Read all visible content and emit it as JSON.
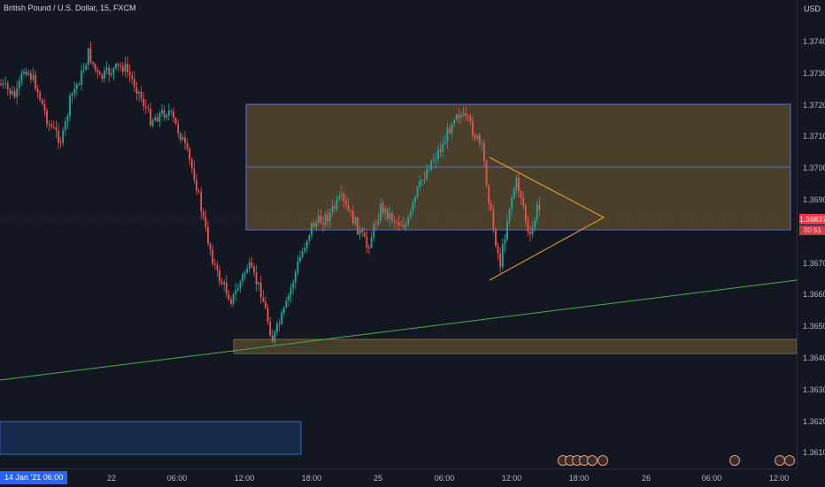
{
  "header": {
    "title": "British Pound / U.S. Dollar, 15, FXCM",
    "currency": "USD"
  },
  "price_axis": {
    "ticks": [
      "1.37400",
      "1.37300",
      "1.37200",
      "1.37100",
      "1.37000",
      "1.36900",
      "1.36800",
      "1.36700",
      "1.36600",
      "1.36500",
      "1.36400",
      "1.36300",
      "1.36200",
      "1.36100"
    ],
    "current_price": "1.36837",
    "countdown": "00:51"
  },
  "time_axis": {
    "ticks": [
      "22",
      "06:00",
      "12:00",
      "18:00",
      "25",
      "06:00",
      "12:00",
      "18:00",
      "26",
      "06:00",
      "12:00"
    ],
    "crosshair_label": "14 Jan '21  06:00"
  },
  "colors": {
    "background": "#131722",
    "bull": "#26a69a",
    "bear": "#ef5350",
    "zone_fill": "#5c4d2e",
    "zone_border": "#5b6dd6",
    "trendline": "#4caf50",
    "triangle": "#f0a030",
    "price_line": "#f23645",
    "blue_box": "#1e3a6e"
  },
  "chart_data": {
    "type": "candlestick",
    "symbol": "GBPUSD",
    "interval": "15",
    "ylim": [
      1.3603,
      1.3747
    ],
    "last_price": 1.36837,
    "zones": [
      {
        "name": "upper-resistance-zone",
        "low": 1.368,
        "high": 1.372
      },
      {
        "name": "upper-zone-midline",
        "price": 1.37
      },
      {
        "name": "lower-support-zone",
        "low": 1.3642,
        "high": 1.3646
      }
    ]
  }
}
